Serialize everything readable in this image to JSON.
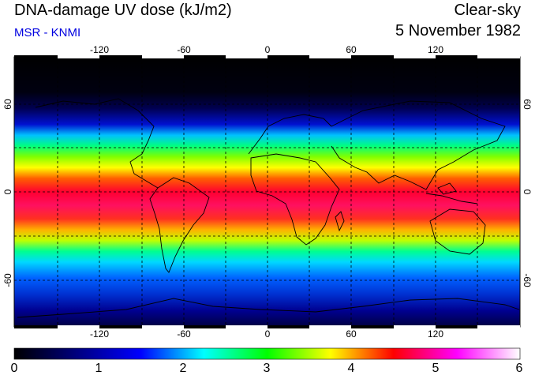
{
  "header": {
    "title": "DNA-damage UV dose (kJ/m2)",
    "source": "MSR - KNMI",
    "condition": "Clear-sky",
    "date": "5 November 1982"
  },
  "map": {
    "lon_ticks": [
      "-120",
      "-60",
      "0",
      "60",
      "120"
    ],
    "lat_ticks_left": [
      "60",
      "0",
      "-60"
    ],
    "lat_ticks_right": [
      "60",
      "0",
      "-60"
    ]
  },
  "colorbar": {
    "labels": [
      "0",
      "1",
      "2",
      "3",
      "4",
      "5",
      "6"
    ],
    "colors": [
      "#000000",
      "#000080",
      "#0000ff",
      "#00ffff",
      "#00ff00",
      "#ffff00",
      "#ff0000",
      "#ff00ff",
      "#ffffff"
    ]
  }
}
